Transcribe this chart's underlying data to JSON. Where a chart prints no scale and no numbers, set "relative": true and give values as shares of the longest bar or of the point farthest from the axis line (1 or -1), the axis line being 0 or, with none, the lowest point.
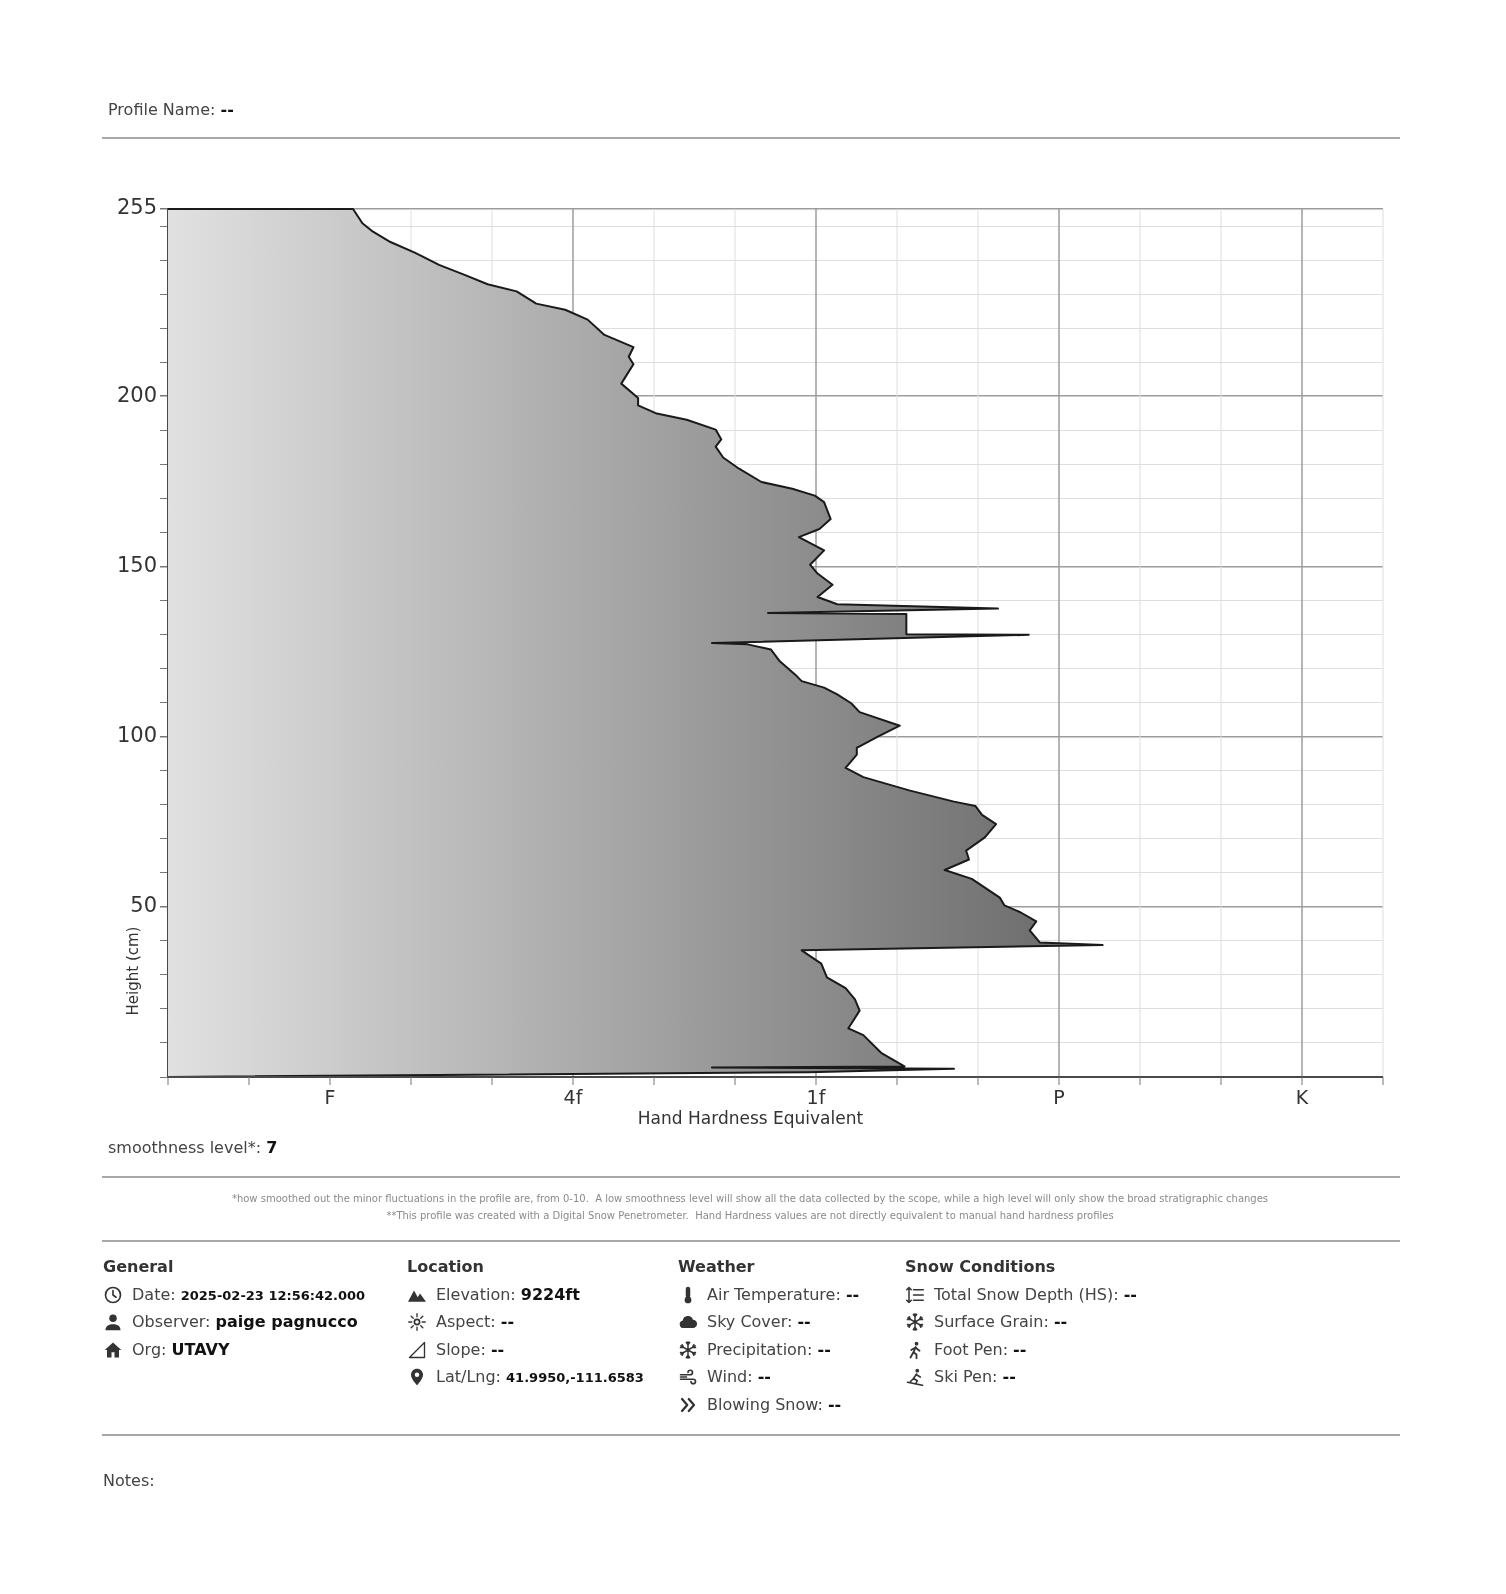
{
  "chart_data": {
    "type": "area",
    "orientation": "horizontal",
    "relative": true,
    "title": "Profile Name: --",
    "xlabel": "Hand Hardness Equivalent",
    "ylabel": "Height (cm)",
    "series": [
      {
        "color": "#424242",
        "x": [
          255,
          255,
          250.8,
          248.6,
          245.3,
          242.2,
          238.6,
          235.8,
          232.9,
          230.8,
          227.2,
          225.4,
          222.5,
          218,
          214.4,
          211.6,
          209.4,
          205.9,
          203.7,
          199.5,
          197.3,
          194.9,
          193.1,
          190.2,
          187.3,
          185.2,
          182,
          178.7,
          174.8,
          172.8,
          170.8,
          168.9,
          163.9,
          161,
          158.6,
          154.7,
          150.5,
          147.9,
          144.6,
          141,
          138.9,
          137.6,
          136.3,
          136,
          130.1,
          129.9,
          127.5,
          127.1,
          125.6,
          122.3,
          117.7,
          116.3,
          114.4,
          112.4,
          109.8,
          107.2,
          103.2,
          99.9,
          96.7,
          94.7,
          90.8,
          88.1,
          84.2,
          80.9,
          79.6,
          77,
          74.3,
          70.4,
          66.5,
          63.9,
          60.8,
          58.2,
          52.7,
          50.4,
          48.4,
          45.7,
          43.1,
          39.5,
          38.8,
          37.2,
          35.5,
          33.3,
          29.3,
          26.1,
          22.8,
          19.5,
          14.3,
          12.3,
          7.1,
          3.1,
          2.8,
          2.4,
          1.4,
          0
        ],
        "values": [
          0,
          0.198,
          0.208,
          0.218,
          0.238,
          0.264,
          0.29,
          0.316,
          0.342,
          0.373,
          0.394,
          0.425,
          0.449,
          0.467,
          0.498,
          0.493,
          0.498,
          0.49,
          0.485,
          0.503,
          0.503,
          0.523,
          0.555,
          0.586,
          0.592,
          0.586,
          0.594,
          0.611,
          0.635,
          0.668,
          0.692,
          0.702,
          0.709,
          0.697,
          0.675,
          0.702,
          0.687,
          0.695,
          0.711,
          0.695,
          0.716,
          0.888,
          0.642,
          0.79,
          0.79,
          0.921,
          0.582,
          0.62,
          0.645,
          0.654,
          0.673,
          0.678,
          0.702,
          0.716,
          0.731,
          0.74,
          0.783,
          0.759,
          0.737,
          0.737,
          0.725,
          0.744,
          0.793,
          0.841,
          0.864,
          0.871,
          0.886,
          0.874,
          0.854,
          0.857,
          0.831,
          0.86,
          0.89,
          0.895,
          0.912,
          0.929,
          0.922,
          0.933,
          1,
          0.678,
          0.687,
          0.699,
          0.705,
          0.725,
          0.735,
          0.74,
          0.728,
          0.744,
          0.763,
          0.788,
          0.582,
          0.841,
          0.685,
          0
        ]
      }
    ],
    "ylim": [
      0,
      255
    ],
    "yticks": [
      {
        "value": 0,
        "label": null
      },
      {
        "value": 10,
        "label": null
      },
      {
        "value": 20,
        "label": null
      },
      {
        "value": 30,
        "label": null
      },
      {
        "value": 40,
        "label": null
      },
      50,
      {
        "value": 60,
        "label": null
      },
      {
        "value": 70,
        "label": null
      },
      {
        "value": 80,
        "label": null
      },
      {
        "value": 90,
        "label": null
      },
      100,
      {
        "value": 110,
        "label": null
      },
      {
        "value": 120,
        "label": null
      },
      {
        "value": 130,
        "label": null
      },
      {
        "value": 140,
        "label": null
      },
      150,
      {
        "value": 160,
        "label": null
      },
      {
        "value": 170,
        "label": null
      },
      {
        "value": 180,
        "label": null
      },
      {
        "value": 190,
        "label": null
      },
      200,
      {
        "value": 210,
        "label": null
      },
      {
        "value": 220,
        "label": null
      },
      {
        "value": 230,
        "label": null
      },
      {
        "value": 240,
        "label": null
      },
      {
        "value": 250,
        "label": null
      },
      255
    ],
    "grid": true,
    "annotations": [
      "smoothness level*: 7",
      "*how smoothed out the minor fluctuations in the profile are, from 0-10.  A low smoothness level will show all the data collected by the scope, while a high level will only show the broad stratigraphic changes",
      "**This profile was created with a Digital Snow Penetrometer.  Hand Hardness values are not directly equivalent to manual hand hardness profiles",
      "General",
      "Date: 2025-02-23 12:56:42.000",
      "Observer: paige pagnucco",
      "Org: UTAVY",
      "Location",
      "Elevation: 9224ft",
      "Aspect: --",
      "Slope: --",
      "Lat/Lng: 41.9950,-111.6583",
      "Weather",
      "Air Temperature: --",
      "Sky Cover: --",
      "Precipitation: --",
      "Wind: --",
      "Blowing Snow: --",
      "Snow Conditions",
      "Total Snow Depth (HS): --",
      "Surface Grain: --",
      "Foot Pen: --",
      "Ski Pen: --",
      "Notes:",
      "F",
      "4f",
      "1f",
      "P",
      "K"
    ]
  }
}
